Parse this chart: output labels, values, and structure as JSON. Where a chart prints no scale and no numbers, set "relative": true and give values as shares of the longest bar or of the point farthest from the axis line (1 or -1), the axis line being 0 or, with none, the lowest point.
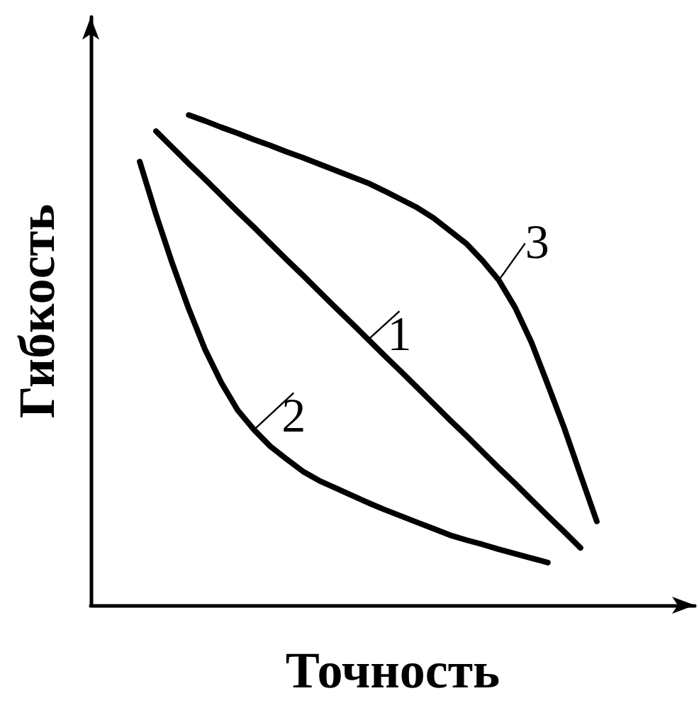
{
  "chart_data": {
    "type": "line",
    "relative": true,
    "xlabel": "Точность",
    "ylabel": "Гибкость",
    "marker": "none",
    "categories": [
      null,
      null,
      null,
      null,
      null,
      null,
      null,
      null,
      null,
      null,
      null,
      null,
      null,
      null,
      null,
      null,
      null,
      null,
      null,
      null,
      null,
      null,
      null,
      null,
      null,
      null,
      null,
      null,
      null,
      null,
      null,
      null,
      null,
      null,
      null,
      null,
      null,
      null
    ],
    "series": [
      {
        "name": "1",
        "color": "#000000",
        "values": [
          null,
          null,
          null,
          null,
          0.967,
          0.934,
          0.901,
          0.869,
          0.836,
          0.803,
          0.771,
          0.738,
          0.705,
          0.673,
          0.64,
          0.607,
          0.575,
          0.542,
          0.509,
          0.477,
          0.444,
          0.411,
          0.378,
          0.346,
          0.313,
          0.28,
          0.248,
          0.215,
          0.182,
          0.15,
          0.117,
          null,
          null,
          null,
          null,
          null,
          null,
          null
        ]
      },
      {
        "name": "2",
        "color": "#000000",
        "values": [
          null,
          null,
          null,
          0.905,
          0.797,
          0.697,
          0.605,
          0.522,
          0.454,
          0.398,
          0.358,
          0.324,
          0.298,
          0.273,
          0.254,
          0.239,
          0.224,
          0.209,
          0.195,
          0.182,
          0.169,
          0.156,
          0.143,
          0.133,
          0.124,
          0.114,
          0.105,
          0.096,
          0.087,
          null,
          null,
          null,
          null,
          null,
          null,
          null,
          null,
          null
        ]
      },
      {
        "name": "3",
        "color": "#000000",
        "values": [
          null,
          null,
          null,
          null,
          null,
          null,
          1.0,
          0.988,
          0.975,
          0.963,
          0.95,
          0.938,
          0.925,
          0.913,
          0.9,
          0.887,
          0.874,
          0.861,
          0.845,
          0.828,
          0.811,
          0.79,
          0.764,
          0.738,
          0.703,
          0.663,
          0.607,
          0.536,
          0.45,
          0.362,
          0.266,
          0.171,
          null,
          null,
          null,
          null,
          null,
          null
        ]
      }
    ]
  }
}
